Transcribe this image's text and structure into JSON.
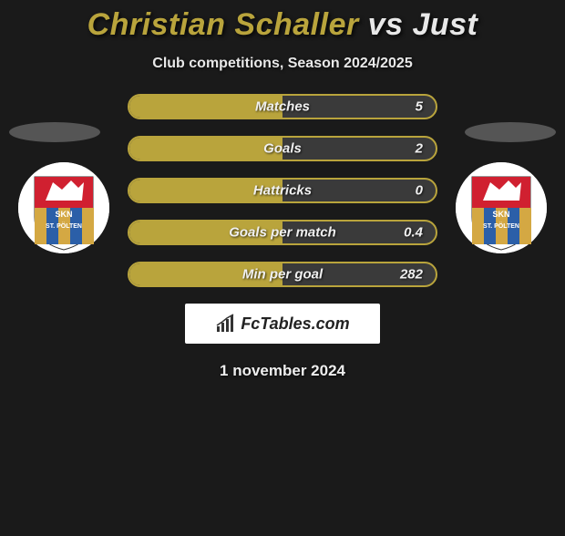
{
  "title": {
    "player1": "Christian Schaller",
    "vs": "vs",
    "player2": "Just",
    "player1_color": "#b9a43c",
    "player2_color": "#e8e8e8"
  },
  "subtitle": "Club competitions, Season 2024/2025",
  "stats": {
    "bar_border_color": "#b9a43c",
    "bar_fill_color": "#b9a43c",
    "bar_bg_color": "#3a3a3a",
    "label_fontsize": 15,
    "rows": [
      {
        "label": "Matches",
        "value": "5",
        "fill_pct": 50
      },
      {
        "label": "Goals",
        "value": "2",
        "fill_pct": 50
      },
      {
        "label": "Hattricks",
        "value": "0",
        "fill_pct": 50
      },
      {
        "label": "Goals per match",
        "value": "0.4",
        "fill_pct": 50
      },
      {
        "label": "Min per goal",
        "value": "282",
        "fill_pct": 50
      }
    ]
  },
  "badge": {
    "top_text": "SKN",
    "bottom_text": "ST. PÖLTEN",
    "stripe_colors": [
      "#d4a843",
      "#2b5fa8",
      "#d4a843",
      "#2b5fa8",
      "#d4a843"
    ],
    "emblem_bg": "#d02030",
    "wolf_color": "#ffffff"
  },
  "logo": {
    "text": "FcTables.com"
  },
  "date": "1 november 2024",
  "colors": {
    "page_bg": "#1a1a1a",
    "text": "#ffffff"
  }
}
